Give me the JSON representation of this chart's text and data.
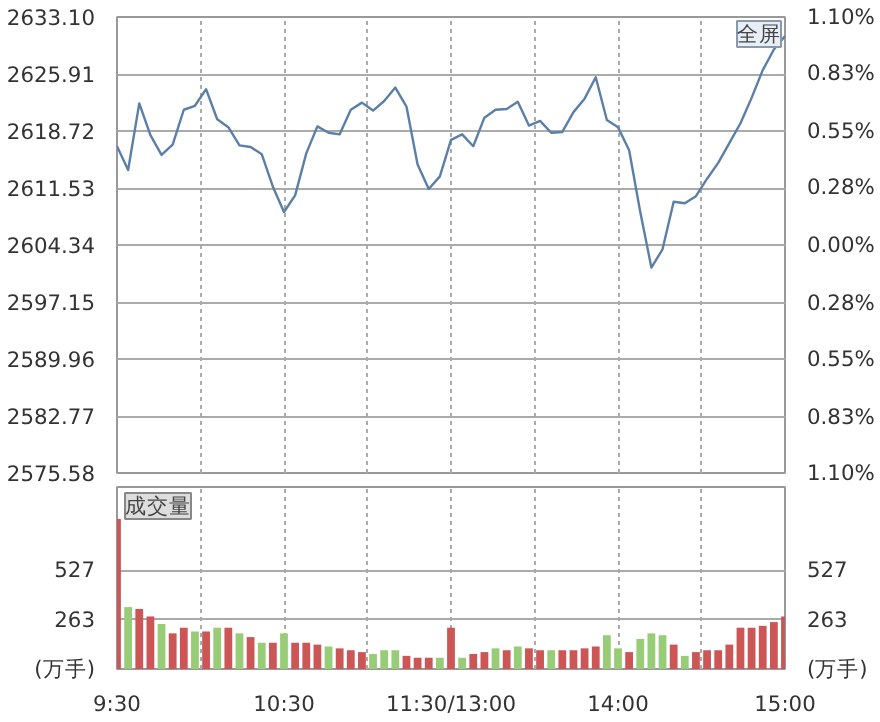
{
  "chart_data": [
    {
      "type": "line",
      "annotations": [
        "全屏"
      ],
      "categories": [
        null,
        null,
        null,
        null,
        null,
        null,
        null,
        null,
        null,
        null,
        null,
        null,
        null,
        null,
        null,
        null,
        null,
        null,
        null,
        null,
        null,
        null,
        null,
        null,
        null,
        null,
        null,
        null,
        null,
        null,
        null,
        null,
        null,
        null,
        null,
        null,
        null,
        null,
        null,
        null,
        null,
        null,
        null,
        null,
        null,
        null,
        null,
        null,
        null,
        null,
        null,
        null,
        null,
        null,
        null,
        null,
        null,
        null,
        null,
        null,
        null
      ],
      "series": [
        {
          "color": "#5b7fa6",
          "values": [
            2616.8,
            2613.8,
            2622.2,
            2618.2,
            2615.7,
            2617.0,
            2621.4,
            2621.9,
            2624.0,
            2620.2,
            2619.2,
            2616.9,
            2616.7,
            2615.8,
            2611.7,
            2608.5,
            2610.6,
            2615.9,
            2619.3,
            2618.5,
            2618.3,
            2621.4,
            2622.3,
            2621.3,
            2622.5,
            2624.2,
            2621.8,
            2614.5,
            2611.4,
            2613.0,
            2617.6,
            2618.3,
            2616.8,
            2620.4,
            2621.4,
            2621.5,
            2622.4,
            2619.4,
            2620.0,
            2618.5,
            2618.6,
            2621.1,
            2622.8,
            2625.5,
            2620.1,
            2619.2,
            2616.3,
            2608.5,
            2601.5,
            2603.8,
            2609.8,
            2609.6,
            2610.5,
            2612.7,
            2614.7,
            2617.2,
            2619.7,
            2622.9,
            2626.4,
            2629.0,
            2630.7
          ]
        }
      ],
      "ylim": [
        2575.58,
        2633.1
      ],
      "yticks": [
        {
          "value": 2575.58,
          "label": "2575.58"
        },
        {
          "value": 2582.77,
          "label": "2582.77"
        },
        {
          "value": 2589.96,
          "label": "2589.96"
        },
        {
          "value": 2597.15,
          "label": "2597.15"
        },
        {
          "value": 2604.34,
          "label": "2604.34"
        },
        {
          "value": 2611.53,
          "label": "2611.53"
        },
        {
          "value": 2618.72,
          "label": "2618.72"
        },
        {
          "value": 2625.91,
          "label": "2625.91"
        },
        {
          "value": 2633.1,
          "label": "2633.10"
        }
      ],
      "y2lim": [
        -1.1,
        1.1
      ],
      "y2ticks": [
        {
          "value": -1.1,
          "label": "1.10%"
        },
        {
          "value": -0.83,
          "label": "0.83%"
        },
        {
          "value": -0.55,
          "label": "0.55%"
        },
        {
          "value": -0.28,
          "label": "0.28%"
        },
        {
          "value": 0,
          "label": "0.00%"
        },
        {
          "value": 0.28,
          "label": "0.28%"
        },
        {
          "value": 0.55,
          "label": "0.55%"
        },
        {
          "value": 0.83,
          "label": "0.83%"
        },
        {
          "value": 1.1,
          "label": "1.10%"
        }
      ],
      "grid": true,
      "tick_labels": "y"
    },
    {
      "type": "bar",
      "annotations": [
        "成交量"
      ],
      "categories": [
        "9:30",
        null,
        null,
        null,
        null,
        null,
        null,
        null,
        null,
        null,
        null,
        null,
        null,
        null,
        null,
        "10:30",
        null,
        null,
        null,
        null,
        null,
        null,
        null,
        null,
        null,
        null,
        null,
        null,
        null,
        null,
        "11:30/13:00",
        null,
        null,
        null,
        null,
        null,
        null,
        null,
        null,
        null,
        null,
        null,
        null,
        null,
        null,
        "14:00",
        null,
        null,
        null,
        null,
        null,
        null,
        null,
        null,
        null,
        null,
        null,
        null,
        null,
        null,
        "15:00"
      ],
      "values": [
        800,
        330,
        320,
        280,
        240,
        190,
        220,
        200,
        200,
        220,
        220,
        190,
        170,
        140,
        140,
        190,
        140,
        140,
        130,
        120,
        110,
        100,
        90,
        80,
        100,
        100,
        70,
        60,
        60,
        60,
        220,
        60,
        80,
        90,
        110,
        100,
        120,
        110,
        100,
        100,
        100,
        100,
        110,
        120,
        180,
        110,
        90,
        160,
        190,
        180,
        130,
        70,
        90,
        100,
        100,
        130,
        220,
        220,
        230,
        250,
        280
      ],
      "colors": [
        "#cc5555",
        "#99cc77",
        "#cc5555",
        "#cc5555",
        "#99cc77",
        "#cc5555",
        "#cc5555",
        "#99cc77",
        "#cc5555",
        "#99cc77",
        "#cc5555",
        "#99cc77",
        "#cc5555",
        "#99cc77",
        "#cc5555",
        "#99cc77",
        "#cc5555",
        "#cc5555",
        "#cc5555",
        "#99cc77",
        "#cc5555",
        "#cc5555",
        "#cc5555",
        "#99cc77",
        "#99cc77",
        "#99cc77",
        "#cc5555",
        "#cc5555",
        "#cc5555",
        "#99cc77",
        "#cc5555",
        "#99cc77",
        "#cc5555",
        "#cc5555",
        "#99cc77",
        "#cc5555",
        "#99cc77",
        "#cc5555",
        "#cc5555",
        "#99cc77",
        "#cc5555",
        "#cc5555",
        "#cc5555",
        "#cc5555",
        "#99cc77",
        "#99cc77",
        "#cc5555",
        "#99cc77",
        "#99cc77",
        "#99cc77",
        "#cc5555",
        "#99cc77",
        "#cc5555",
        "#cc5555",
        "#cc5555",
        "#cc5555",
        "#cc5555",
        "#cc5555",
        "#cc5555",
        "#cc5555",
        "#cc5555"
      ],
      "ylim": [
        0,
        970
      ],
      "yticks": [
        {
          "value": 0,
          "label": "(万手)"
        },
        263,
        527
      ],
      "y2lim": [
        0,
        970
      ],
      "y2ticks": [
        {
          "value": 0,
          "label": "(万手)"
        },
        263,
        527
      ],
      "grid": true
    }
  ]
}
